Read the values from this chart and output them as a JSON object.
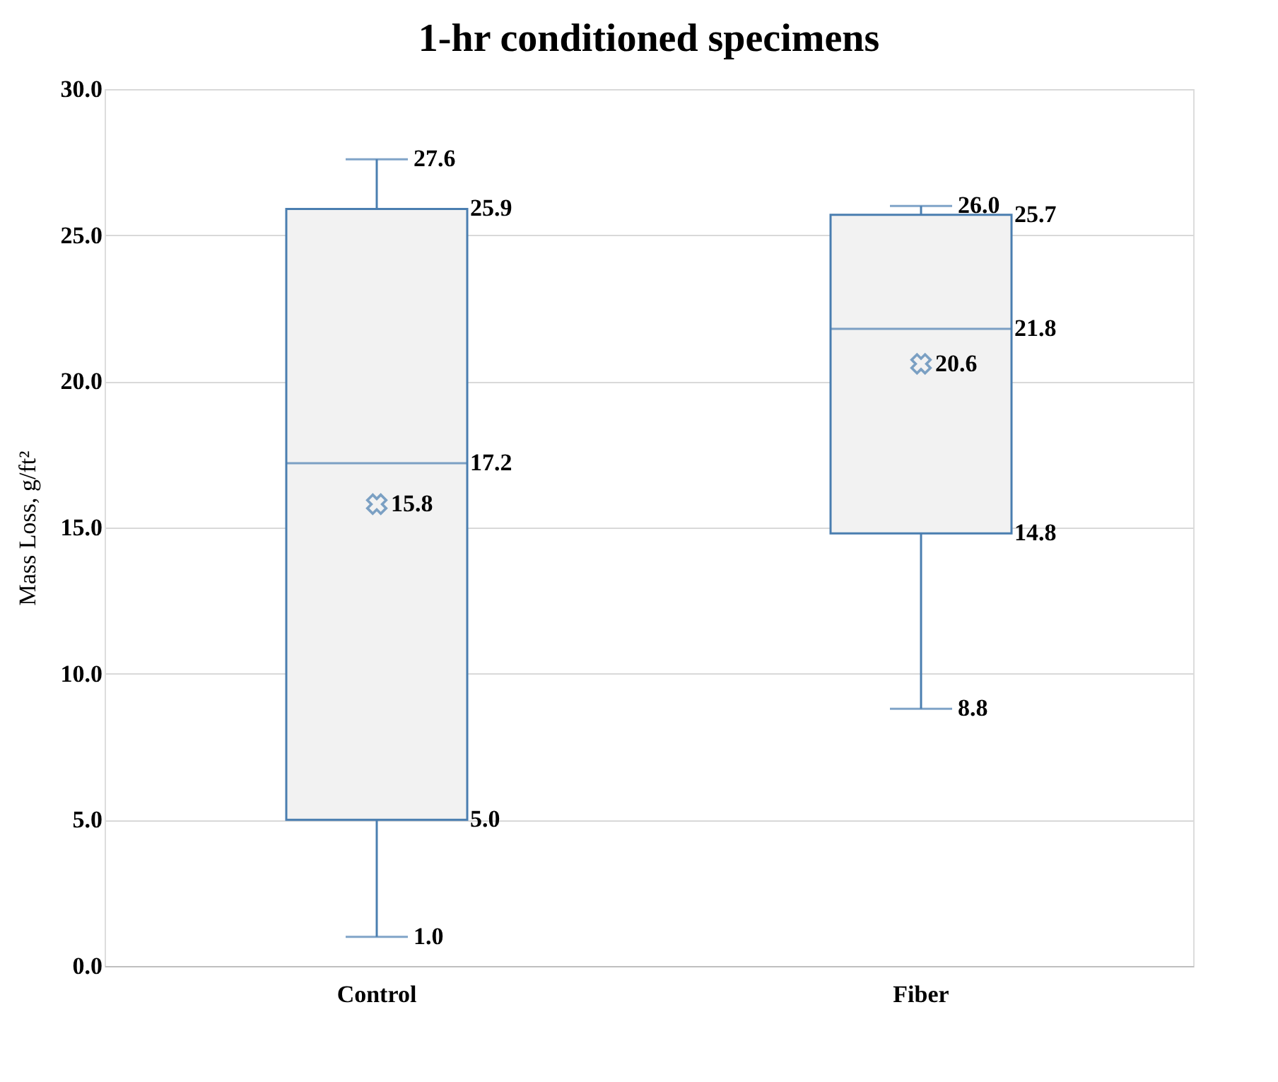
{
  "chart_data": {
    "type": "box",
    "title": "1-hr conditioned specimens",
    "ylabel": "Mass Loss, g/ft²",
    "categories": [
      "Control",
      "Fiber"
    ],
    "boxes": [
      {
        "low": 1.0,
        "q1": 5.0,
        "median": 17.2,
        "q3": 25.9,
        "high": 27.6,
        "mean": 15.8
      },
      {
        "low": 8.8,
        "q1": 14.8,
        "median": 21.8,
        "q3": 25.7,
        "high": 26.0,
        "mean": 20.6
      }
    ],
    "color": "#4a7eb0",
    "ylim": [
      0,
      30
    ],
    "yticks": [
      {
        "value": 0,
        "label": "0.0"
      },
      {
        "value": 5,
        "label": "5.0"
      },
      {
        "value": 10,
        "label": "10.0"
      },
      {
        "value": 15,
        "label": "15.0"
      },
      {
        "value": 20,
        "label": "20.0"
      },
      {
        "value": 25,
        "label": "25.0"
      },
      {
        "value": 30,
        "label": "30.0"
      }
    ],
    "value_labels": [
      [
        "1.0",
        "5.0",
        "17.2",
        "25.9",
        "27.6",
        "15.8"
      ],
      [
        "8.8",
        "14.8",
        "21.8",
        "25.7",
        "26.0",
        "20.6"
      ]
    ],
    "grid": "y",
    "marker": "cross",
    "legend": false
  }
}
